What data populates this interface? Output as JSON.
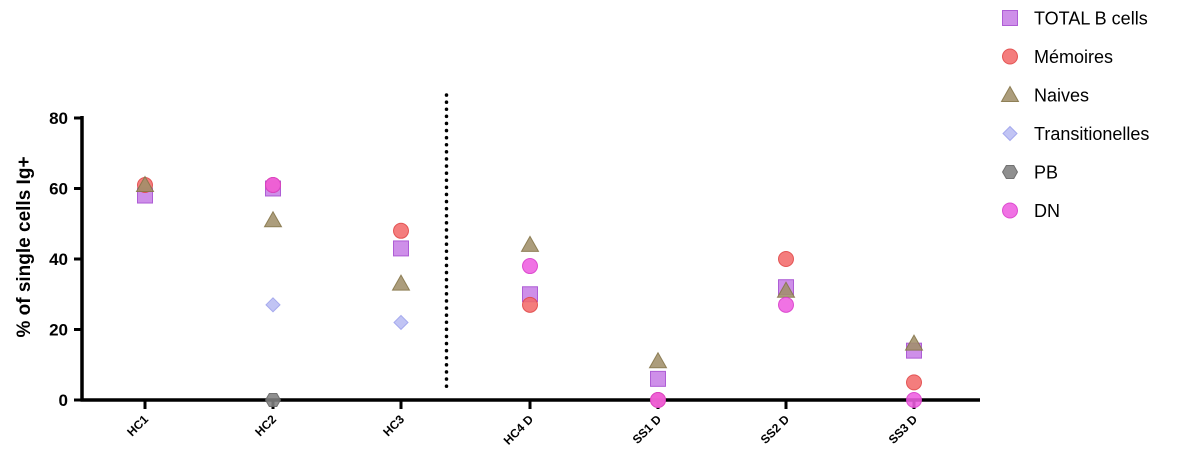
{
  "chart_data": {
    "type": "scatter",
    "ylabel": "% of single cells Ig+",
    "ylim": [
      0,
      80
    ],
    "yticks": [
      0,
      20,
      40,
      60,
      80
    ],
    "categories": [
      "HC1",
      "HC2",
      "HC3",
      "HC4 D",
      "SS1 D",
      "SS2 D",
      "SS3 D"
    ],
    "divider_after_category": "HC3",
    "legend_position": "top-right",
    "series": [
      {
        "name": "TOTAL B cells",
        "marker": "square",
        "color": "#c77fe6",
        "stroke": "#a64fd0",
        "values": [
          58,
          60,
          43,
          30,
          6,
          32,
          14
        ]
      },
      {
        "name": " Mémoires",
        "marker": "circle",
        "color": "#f26b6b",
        "stroke": "#e04848",
        "values": [
          61,
          61,
          48,
          27,
          0,
          40,
          5
        ]
      },
      {
        "name": "Naives",
        "marker": "triangle",
        "color": "#a0906a",
        "stroke": "#857549",
        "values": [
          61,
          51,
          33,
          44,
          11,
          31,
          16
        ]
      },
      {
        "name": "Transitionelles",
        "marker": "diamond",
        "color": "#b8bcf3",
        "stroke": "#9da2ec",
        "values": [
          null,
          27,
          22,
          null,
          null,
          null,
          null
        ]
      },
      {
        "name": "PB",
        "marker": "hexagon",
        "color": "#7f7f7f",
        "stroke": "#666666",
        "values": [
          null,
          0,
          null,
          null,
          null,
          null,
          null
        ]
      },
      {
        "name": "DN",
        "marker": "circle",
        "color": "#ee5ee0",
        "stroke": "#d83fcb",
        "values": [
          null,
          61,
          null,
          38,
          0,
          27,
          0
        ]
      }
    ]
  }
}
